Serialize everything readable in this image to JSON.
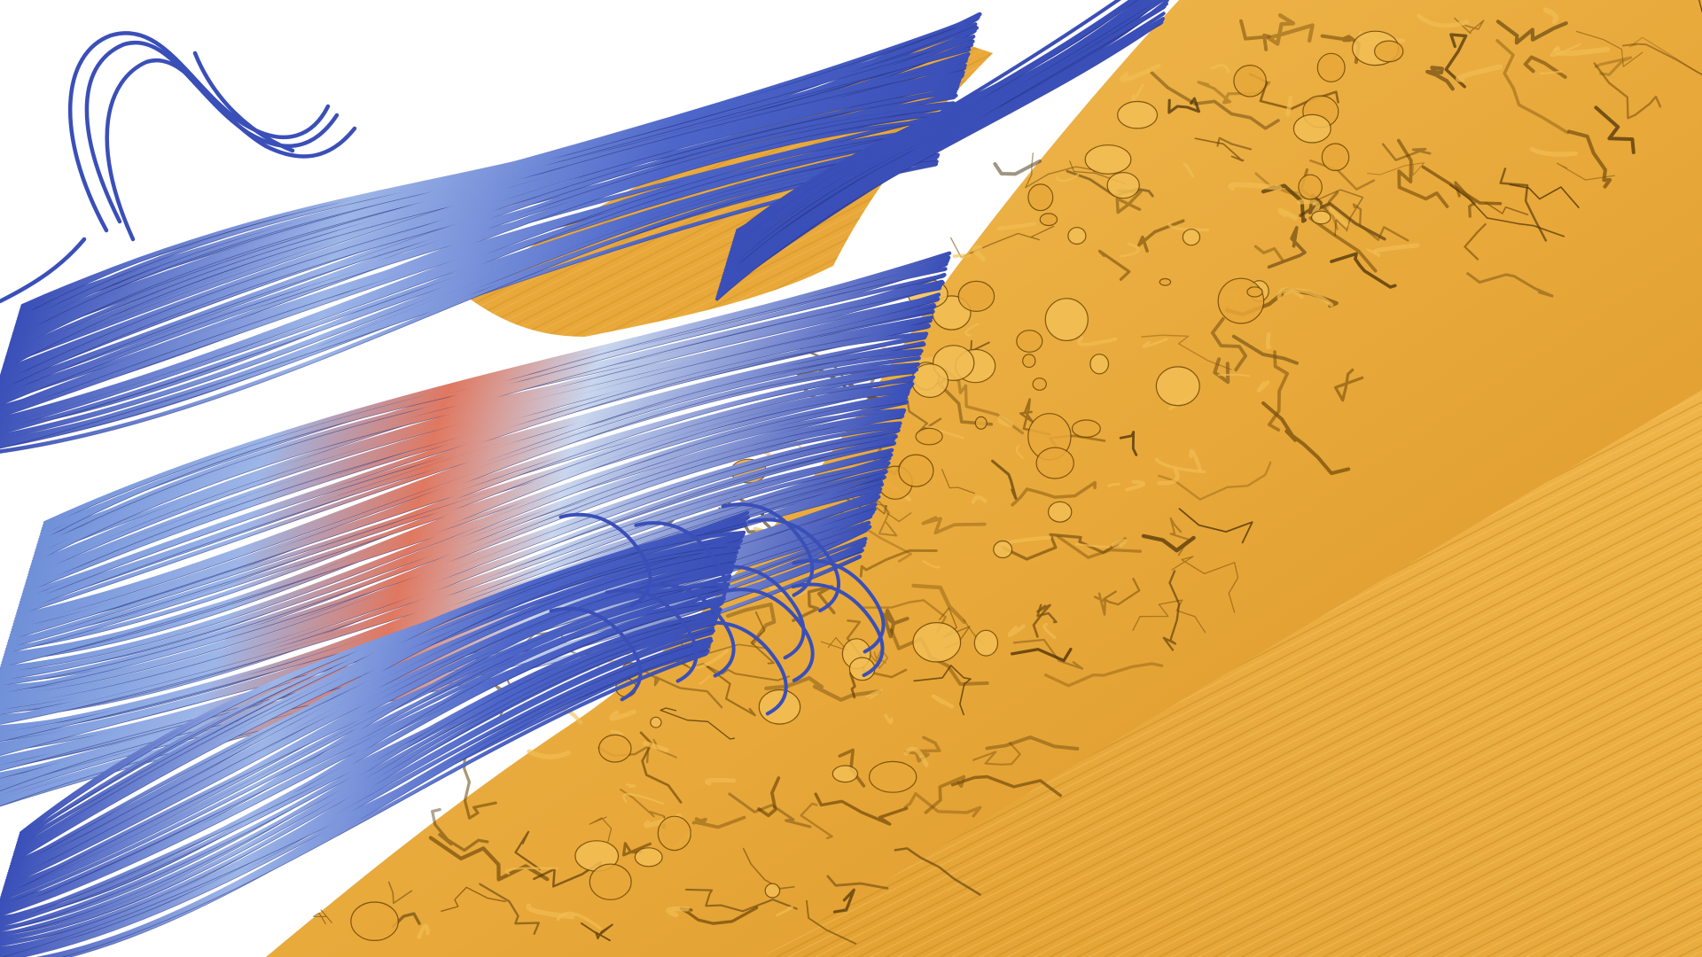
{
  "scene": {
    "subject": "streamlines-over-isosurface",
    "background_color": "#ffffff",
    "surface": {
      "base_color": "#e8a83a",
      "light_color": "#f2bf55",
      "shadow_color": "#6e4708",
      "deep_shadow_color": "#3c2603"
    },
    "streamlines": {
      "low_color": "#3a4fb8",
      "mid_color": "#9db6e8",
      "pale_color": "#c9d6ee",
      "high_color": "#e07860",
      "dark_color": "#25307a"
    }
  }
}
